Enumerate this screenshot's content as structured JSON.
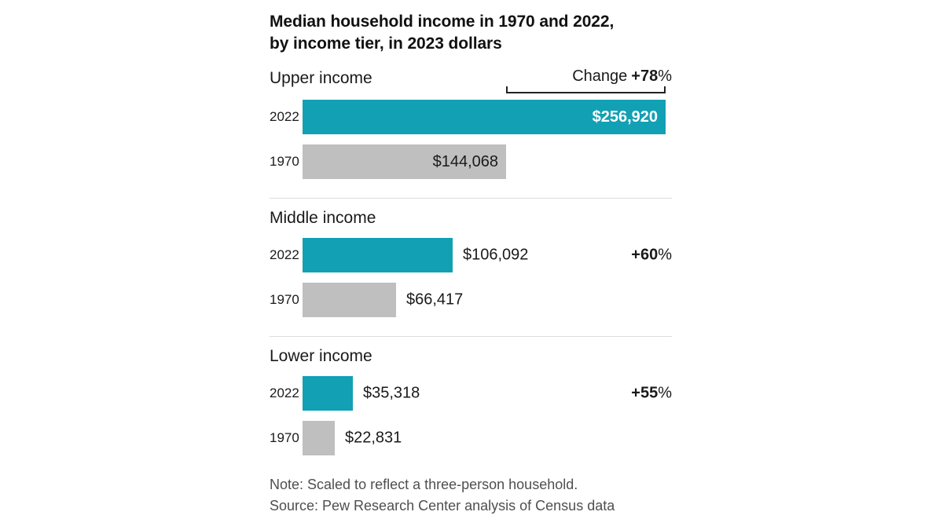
{
  "title": {
    "line1": "Median household income in 1970 and 2022,",
    "line2": "by income tier, in 2023 dollars"
  },
  "colors": {
    "teal": "#12A0B4",
    "gray": "#BFBFBF",
    "text_dark": "#1A1A1A",
    "value_on_teal": "#FFFFFF",
    "footer_text": "#4F4F4F",
    "divider": "#DDDDDD",
    "bracket": "#222222"
  },
  "footer": {
    "note": "Note: Scaled to reflect a three-person household.",
    "source": "Source: Pew Research Center analysis of Census data"
  },
  "chart_data": {
    "type": "bar",
    "orientation": "horizontal",
    "title": "Median household income in 1970 and 2022, by income tier, in 2023 dollars",
    "unit": "2023 dollars",
    "x_max": 256920,
    "grid": false,
    "groups": [
      {
        "label": "Upper income",
        "change_prefix": "Change",
        "change_value": "+78",
        "change_unit": "%",
        "bars": [
          {
            "year": "2022",
            "value": 256920,
            "display": "$256,920",
            "color_key": "teal",
            "label_position": "inside"
          },
          {
            "year": "1970",
            "value": 144068,
            "display": "$144,068",
            "color_key": "gray",
            "label_position": "inside"
          }
        ]
      },
      {
        "label": "Middle income",
        "change_value": "+60",
        "change_unit": "%",
        "bars": [
          {
            "year": "2022",
            "value": 106092,
            "display": "$106,092",
            "color_key": "teal",
            "label_position": "outside"
          },
          {
            "year": "1970",
            "value": 66417,
            "display": "$66,417",
            "color_key": "gray",
            "label_position": "outside"
          }
        ]
      },
      {
        "label": "Lower income",
        "change_value": "+55",
        "change_unit": "%",
        "bars": [
          {
            "year": "2022",
            "value": 35318,
            "display": "$35,318",
            "color_key": "teal",
            "label_position": "outside"
          },
          {
            "year": "1970",
            "value": 22831,
            "display": "$22,831",
            "color_key": "gray",
            "label_position": "outside"
          }
        ]
      }
    ]
  }
}
